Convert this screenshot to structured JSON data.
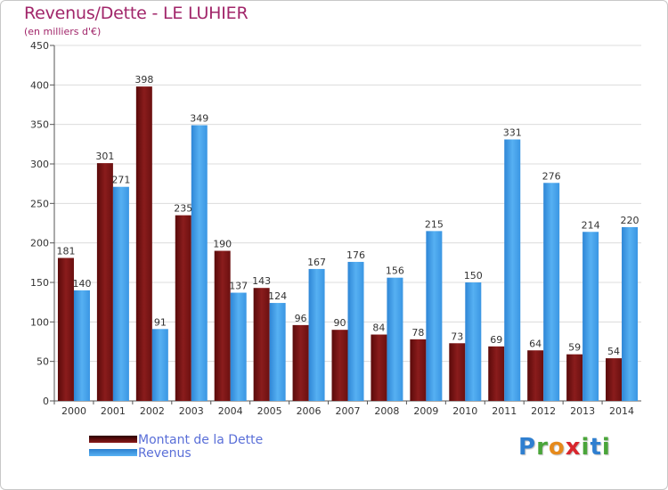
{
  "header": {
    "title": "Revenus/Dette - LE LUHIER",
    "subtitle": "(en milliers d'€)"
  },
  "logo": {
    "letters": [
      "P",
      "r",
      "o",
      "x",
      "i",
      "t",
      "i"
    ]
  },
  "colors": {
    "dette": "#7a1212",
    "revenus": "#3d9be9",
    "title": "#a1266a",
    "legend_text": "#5a6fd8",
    "logo": [
      "#2f7fd0",
      "#4aa53a",
      "#e68a1c",
      "#d8262d",
      "#4aa53a",
      "#2f7fd0",
      "#4aa53a"
    ]
  },
  "chart_data": {
    "type": "bar",
    "title": "Revenus/Dette - LE LUHIER",
    "subtitle": "(en milliers d'€)",
    "xlabel": "",
    "ylabel": "",
    "ylim": [
      0,
      450
    ],
    "yticks": [
      0,
      50,
      100,
      150,
      200,
      250,
      300,
      350,
      400,
      450
    ],
    "grid": true,
    "legend_position": "bottom-left",
    "categories": [
      "2000",
      "2001",
      "2002",
      "2003",
      "2004",
      "2005",
      "2006",
      "2007",
      "2008",
      "2009",
      "2010",
      "2011",
      "2012",
      "2013",
      "2014"
    ],
    "series": [
      {
        "name": "Montant de la Dette",
        "values": [
          181,
          301,
          398,
          235,
          190,
          143,
          96,
          90,
          84,
          78,
          73,
          69,
          64,
          59,
          54
        ]
      },
      {
        "name": "Revenus",
        "values": [
          140,
          271,
          91,
          349,
          137,
          124,
          167,
          176,
          156,
          215,
          150,
          331,
          276,
          214,
          220
        ]
      }
    ]
  }
}
